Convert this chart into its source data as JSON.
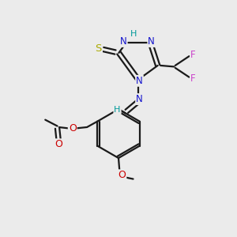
{
  "background_color": "#ebebeb",
  "colors": {
    "bond": "#1a1a1a",
    "N": "#1414cc",
    "S": "#aaaa00",
    "O": "#cc0000",
    "F": "#cc44cc",
    "H": "#009999"
  },
  "figsize": [
    3.0,
    3.0
  ],
  "dpi": 100
}
